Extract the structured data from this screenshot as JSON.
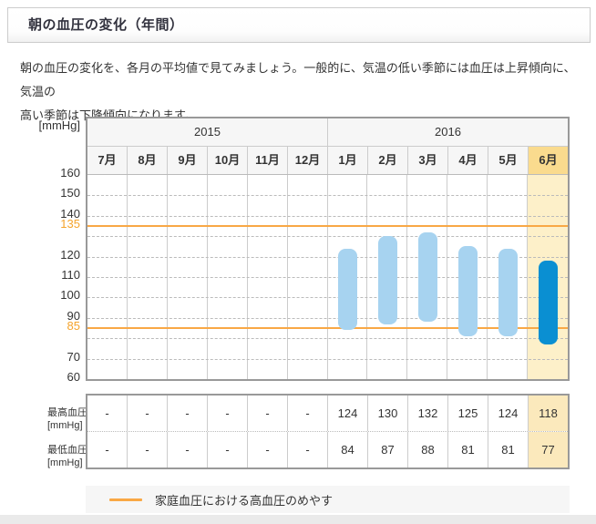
{
  "page": {
    "title": "朝の血圧の変化（年間）",
    "description_lines": [
      "朝の血圧の変化を、各月の平均値で見てみましょう。一般的に、気温の低い季節には血圧は上昇傾向に、気温の",
      "高い季節は下降傾向になります。"
    ]
  },
  "chart_data": {
    "type": "bar",
    "title": "朝の血圧の変化（年間）",
    "unit_label": "[mmHg]",
    "year_groups": [
      {
        "label": "2015",
        "span": 6
      },
      {
        "label": "2016",
        "span": 6
      }
    ],
    "categories": [
      "7月",
      "8月",
      "9月",
      "10月",
      "11月",
      "12月",
      "1月",
      "2月",
      "3月",
      "4月",
      "5月",
      "6月"
    ],
    "series": [
      {
        "name": "最高血圧 [mmHg]",
        "values": [
          null,
          null,
          null,
          null,
          null,
          null,
          124,
          130,
          132,
          125,
          124,
          118
        ]
      },
      {
        "name": "最低血圧 [mmHg]",
        "values": [
          null,
          null,
          null,
          null,
          null,
          null,
          84,
          87,
          88,
          81,
          81,
          77
        ]
      }
    ],
    "ylim": [
      60,
      160
    ],
    "yticks": [
      {
        "value": 160,
        "color": "#333333"
      },
      {
        "value": 150,
        "color": "#333333"
      },
      {
        "value": 140,
        "color": "#333333"
      },
      {
        "value": 135,
        "color": "#f5a42c"
      },
      {
        "value": 120,
        "color": "#333333"
      },
      {
        "value": 110,
        "color": "#333333"
      },
      {
        "value": 100,
        "color": "#333333"
      },
      {
        "value": 90,
        "color": "#333333"
      },
      {
        "value": 85,
        "color": "#f5a42c"
      },
      {
        "value": 70,
        "color": "#333333"
      },
      {
        "value": 60,
        "color": "#333333"
      }
    ],
    "gridlines_dashed": [
      150,
      140,
      130,
      120,
      110,
      100,
      90,
      80,
      70
    ],
    "reference_lines": [
      {
        "value": 135,
        "color": "#f9a845"
      },
      {
        "value": 85,
        "color": "#f9a845"
      }
    ],
    "highlight_month_index": 11,
    "colors": {
      "bar": "#a7d3f0",
      "bar_highlight": "#0a8fd2",
      "column_highlight": "#fdf0c9",
      "month_header_highlight": "#fadb8e",
      "table_cell_highlight": "#fbe9bc",
      "guideline_orange": "#f9a845"
    },
    "legend": {
      "label": "家庭血圧における高血圧のめやす",
      "line_color": "#f9a845"
    }
  },
  "table": {
    "row_labels": [
      {
        "line1": "最高血圧",
        "line2": "[mmHg]"
      },
      {
        "line1": "最低血圧",
        "line2": "[mmHg]"
      }
    ],
    "rows": [
      [
        "-",
        "-",
        "-",
        "-",
        "-",
        "-",
        "124",
        "130",
        "132",
        "125",
        "124",
        "118"
      ],
      [
        "-",
        "-",
        "-",
        "-",
        "-",
        "-",
        "84",
        "87",
        "88",
        "81",
        "81",
        "77"
      ]
    ]
  }
}
